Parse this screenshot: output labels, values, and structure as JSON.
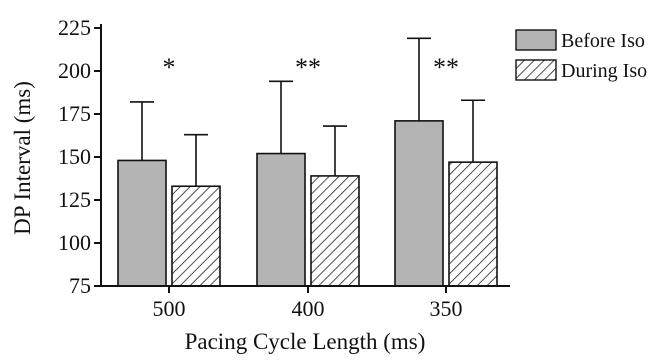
{
  "chart_data": {
    "type": "bar",
    "categories": [
      "500",
      "400",
      "350"
    ],
    "series": [
      {
        "name": "Before Iso",
        "values": [
          148,
          152,
          171
        ],
        "errors": [
          34,
          42,
          48
        ],
        "fill": "#b4b4b4",
        "pattern": "solid"
      },
      {
        "name": "During Iso",
        "values": [
          133,
          139,
          147
        ],
        "errors": [
          30,
          29,
          36
        ],
        "fill": "#ffffff",
        "pattern": "diagonal-hatch"
      }
    ],
    "significance": [
      "*",
      "**",
      "**"
    ],
    "xlabel": "Pacing Cycle Length (ms)",
    "ylabel": "DP Interval (ms)",
    "ylim": [
      75,
      225
    ],
    "yticks": [
      75,
      100,
      125,
      150,
      175,
      200,
      225
    ],
    "legend": "top-right",
    "grid": false
  }
}
